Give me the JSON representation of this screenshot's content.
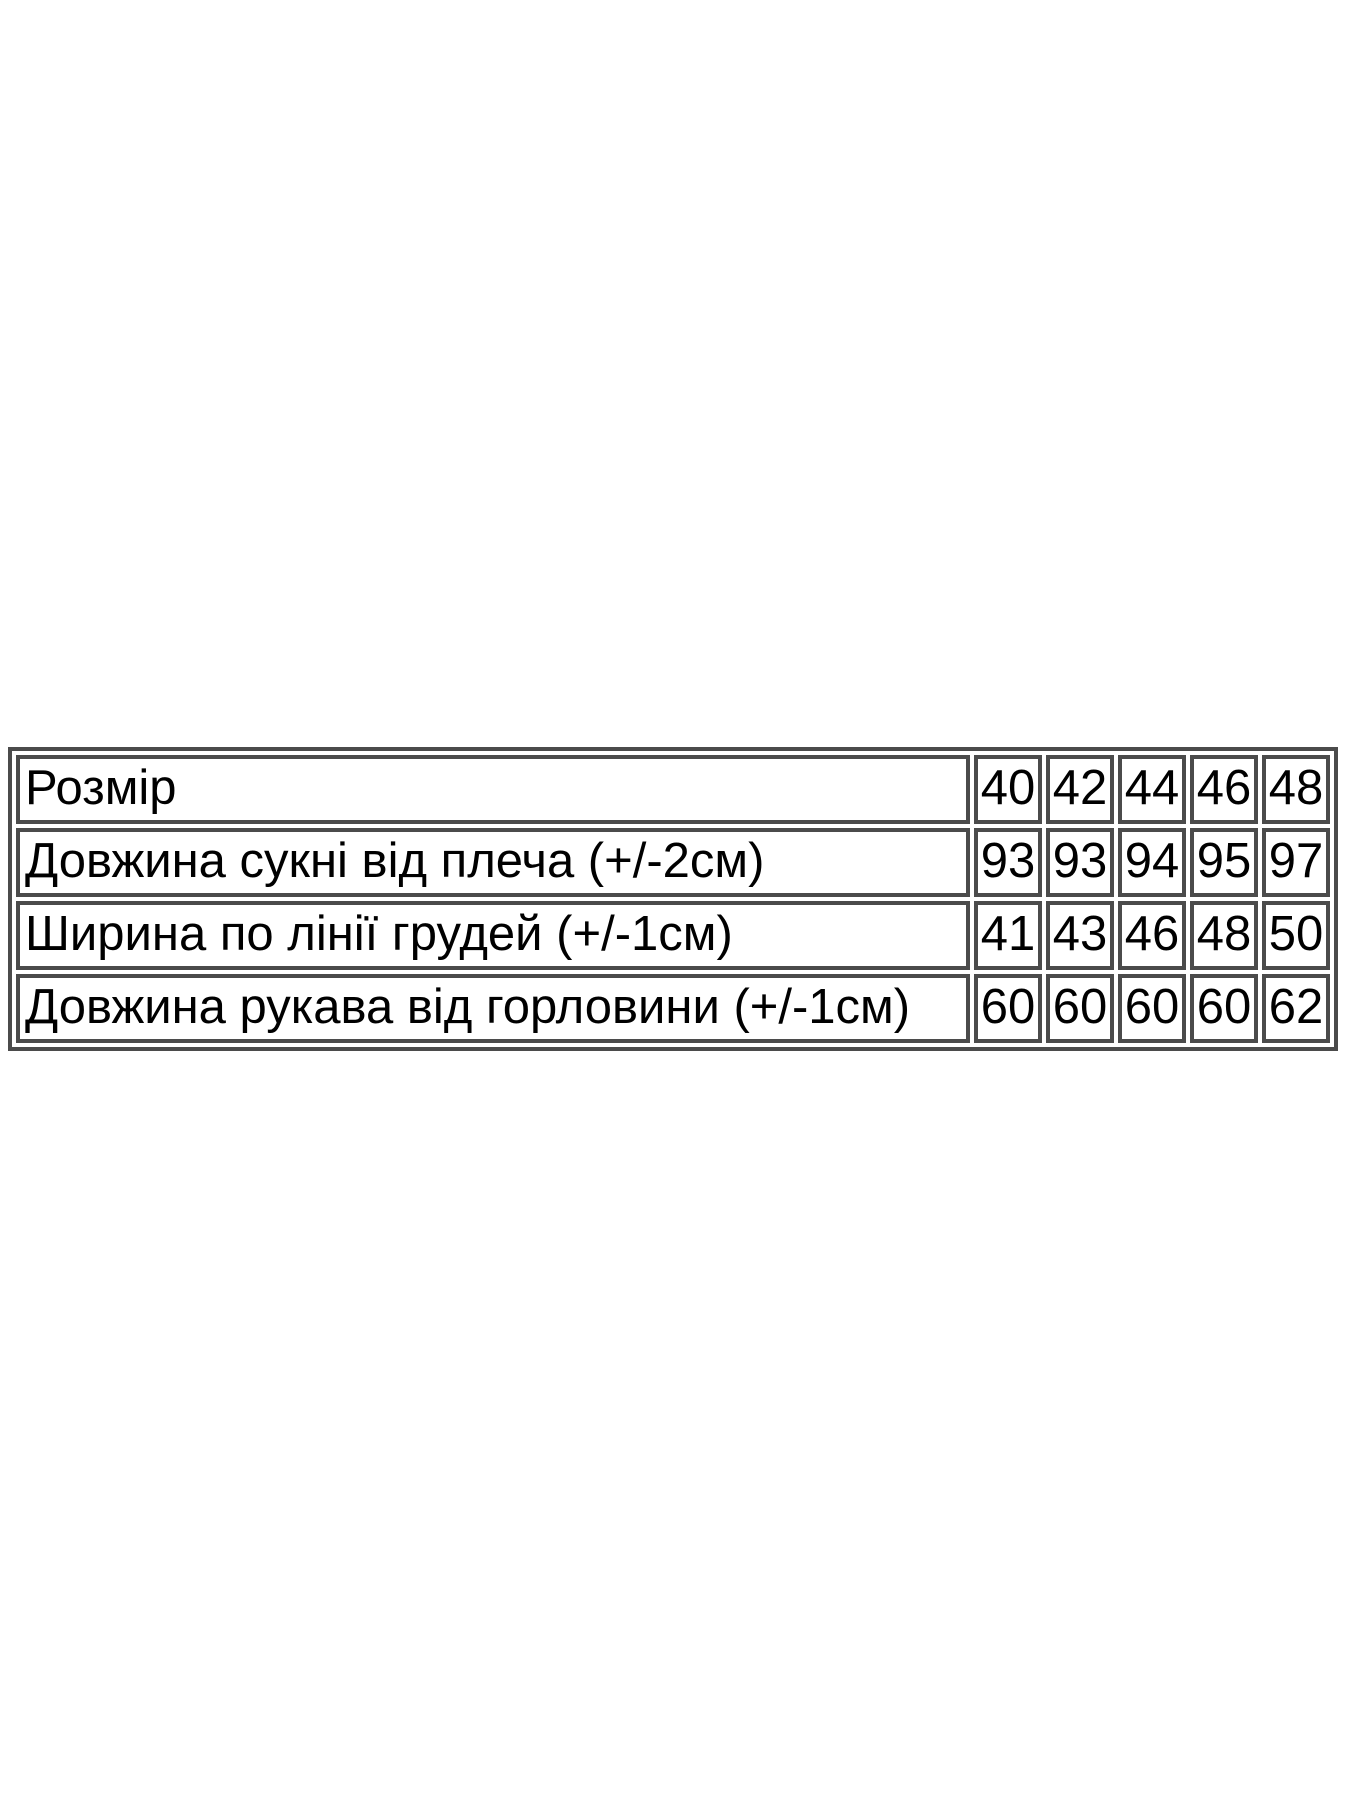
{
  "theme": {
    "background": "#ffffff",
    "border_color": "#4b4b4b",
    "text_color": "#000000"
  },
  "chart_data": {
    "type": "table",
    "columns": [
      "Розмір",
      "40",
      "42",
      "44",
      "46",
      "48"
    ],
    "rows": [
      [
        "Довжина сукні від плеча (+/-2см)",
        "93",
        "93",
        "94",
        "95",
        "97"
      ],
      [
        "Ширина по лінії грудей (+/-1см)",
        "41",
        "43",
        "46",
        "48",
        "50"
      ],
      [
        "Довжина рукава від горловини (+/-1см)",
        "60",
        "60",
        "60",
        "60",
        "62"
      ]
    ],
    "layout_hints": {
      "grid": "separated double borders",
      "label_column_align": "left",
      "value_columns_align": "center"
    }
  }
}
